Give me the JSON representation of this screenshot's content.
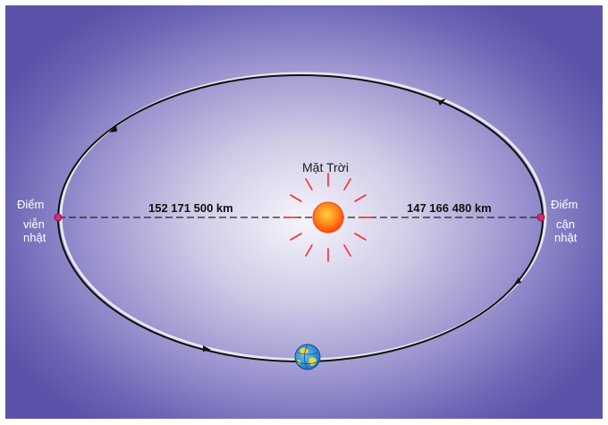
{
  "sun": {
    "label": "Mặt Trời"
  },
  "aphelion": {
    "label_line1": "Điểm",
    "label_line2": "viễn",
    "label_line3": "nhật",
    "distance": "152 171 500 km"
  },
  "perihelion": {
    "label_line1": "Điểm",
    "label_line2": "cận",
    "label_line3": "nhật",
    "distance": "147 166 480 km"
  },
  "colors": {
    "sun": "#ff5a1a",
    "sun_rays": "#ff2a2a",
    "orbit": "#111111",
    "apsis_point": "#e0246e",
    "earth_ocean": "#2f8fd8",
    "earth_land": "#e8d83a"
  }
}
